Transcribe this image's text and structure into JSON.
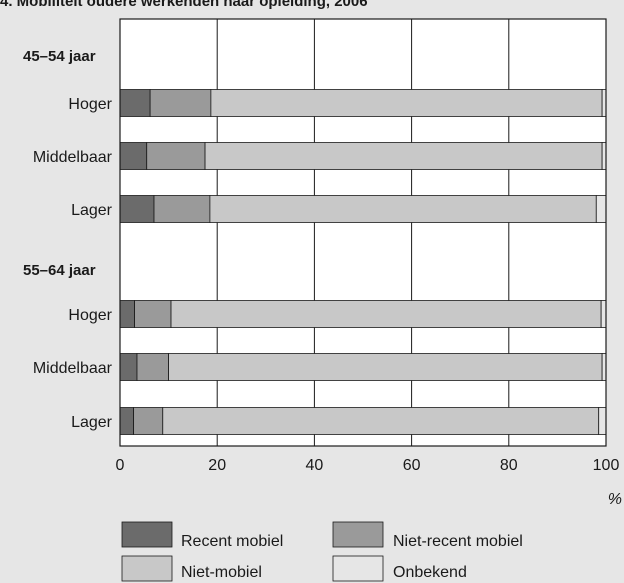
{
  "chart_data": {
    "type": "bar",
    "orientation": "horizontal",
    "stacked": true,
    "title": "4. Mobiliteit oudere werkenden naar opleiding, 2006",
    "xlabel": "%",
    "ylabel": "",
    "xlim": [
      0,
      100
    ],
    "xticks": [
      "0",
      "20",
      "40",
      "60",
      "80",
      "100"
    ],
    "grid": "vertical",
    "legend_position": "bottom",
    "groups": [
      {
        "label": "45–54 jaar",
        "categories": [
          "Hoger",
          "Middelbaar",
          "Lager"
        ]
      },
      {
        "label": "55–64 jaar",
        "categories": [
          "Hoger",
          "Middelbaar",
          "Lager"
        ]
      }
    ],
    "categories": [
      "Hoger",
      "Middelbaar",
      "Lager",
      "Hoger",
      "Middelbaar",
      "Lager"
    ],
    "series": [
      {
        "name": "Recent mobiel",
        "color": "#6b6b6b",
        "values": [
          6.2,
          5.5,
          7.0,
          3.0,
          3.5,
          2.8
        ]
      },
      {
        "name": "Niet-recent mobiel",
        "color": "#9a9a9a",
        "values": [
          12.5,
          12.0,
          11.5,
          7.5,
          6.5,
          6.0
        ]
      },
      {
        "name": "Niet-mobiel",
        "color": "#c8c8c8",
        "values": [
          80.5,
          81.7,
          79.5,
          88.5,
          89.2,
          89.7
        ]
      },
      {
        "name": "Onbekend",
        "color": "#e6e6e6",
        "values": [
          0.8,
          0.8,
          2.0,
          1.0,
          0.8,
          1.5
        ]
      }
    ]
  }
}
